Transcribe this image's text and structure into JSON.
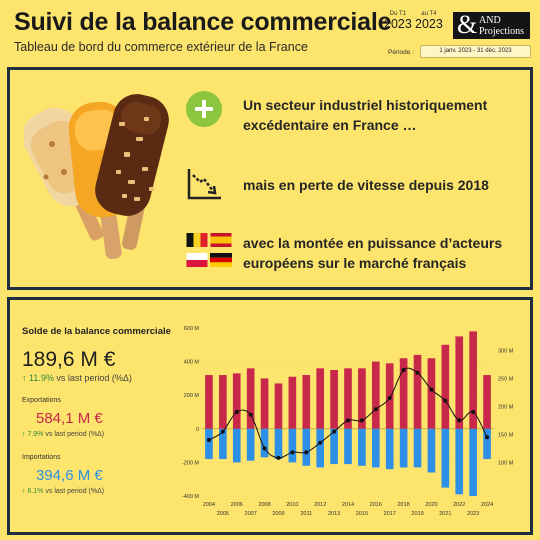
{
  "header": {
    "title": "Suivi de la balance commerciale",
    "subtitle": "Tableau de bord du commerce extérieur de la France",
    "start": {
      "label": "Du T1",
      "year": "2023"
    },
    "end": {
      "label": "au T4",
      "year": "2023"
    },
    "logo": {
      "amp": "&",
      "line1": "AND",
      "line2": "Projections"
    },
    "period_label": "Période :",
    "period_value": "1 janv. 2023 - 31 déc. 2023"
  },
  "insights": {
    "line1": "Un secteur industriel historiquement excédentaire  en France  …",
    "line2": "mais en perte de vitesse depuis 2018",
    "line3": "avec la montée en puissance  d’acteurs européens sur le marché français",
    "icons": [
      "ice-cream-image",
      "plus-icon",
      "downtrend-icon",
      "belgium-flag",
      "spain-flag",
      "poland-flag",
      "germany-flag"
    ]
  },
  "kpis": {
    "title": "Solde de la balance commerciale",
    "solde": "189,6 M €",
    "solde_delta": "11.9%",
    "solde_suffix": "vs last period (%Δ)",
    "exports_label": "Exportations",
    "exports": "584,1 M €",
    "exports_delta": "7.9%",
    "exports_suffix": "vs last period (%Δ)",
    "imports_label": "Importations",
    "imports": "394,6 M €",
    "imports_delta": "6.1%",
    "imports_suffix": "vs last period (%Δ)",
    "colors": {
      "exports": "#c8284a",
      "imports": "#2e8fe6",
      "delta": "#2e8b3e"
    }
  },
  "chart_data": {
    "type": "bar",
    "x": [
      "2004",
      "2005",
      "2006",
      "2007",
      "2008",
      "2009",
      "2010",
      "2011",
      "2012",
      "2013",
      "2014",
      "2015",
      "2016",
      "2017",
      "2018",
      "2019",
      "2020",
      "2021",
      "2022",
      "2023",
      "2024"
    ],
    "series": [
      {
        "name": "Exportations",
        "axis": "left",
        "color": "#c8284a",
        "values": [
          320,
          320,
          330,
          360,
          300,
          270,
          310,
          320,
          360,
          350,
          360,
          360,
          400,
          390,
          420,
          440,
          420,
          500,
          550,
          580,
          320
        ]
      },
      {
        "name": "Importations",
        "axis": "left",
        "color": "#2e8fe6",
        "values": [
          -180,
          -180,
          -200,
          -190,
          -170,
          -180,
          -200,
          -220,
          -230,
          -210,
          -210,
          -220,
          -230,
          -240,
          -230,
          -230,
          -260,
          -350,
          -390,
          -400,
          -180
        ]
      },
      {
        "type": "line",
        "axis": "right",
        "color": "#111111",
        "values": [
          140,
          155,
          190,
          185,
          125,
          108,
          118,
          118,
          135,
          155,
          175,
          175,
          195,
          215,
          265,
          260,
          230,
          210,
          175,
          190,
          145
        ]
      }
    ],
    "left_axis": {
      "ticks": [
        "-400 M",
        "-200 M",
        "0",
        "200 M",
        "400 M",
        "600 M"
      ],
      "range": [
        -400,
        600
      ]
    },
    "right_axis": {
      "ticks": [
        "100 M",
        "150 M",
        "200 M",
        "250 M",
        "300 M"
      ],
      "range": [
        40,
        340
      ]
    },
    "x_ticks_top": [
      "2004",
      "2006",
      "2008",
      "2010",
      "2012",
      "2014",
      "2016",
      "2018",
      "2020",
      "2022",
      "2024"
    ],
    "x_ticks_bottom": [
      "2005",
      "2007",
      "2009",
      "2011",
      "2013",
      "2015",
      "2017",
      "2019",
      "2021",
      "2023"
    ],
    "grid": true
  }
}
